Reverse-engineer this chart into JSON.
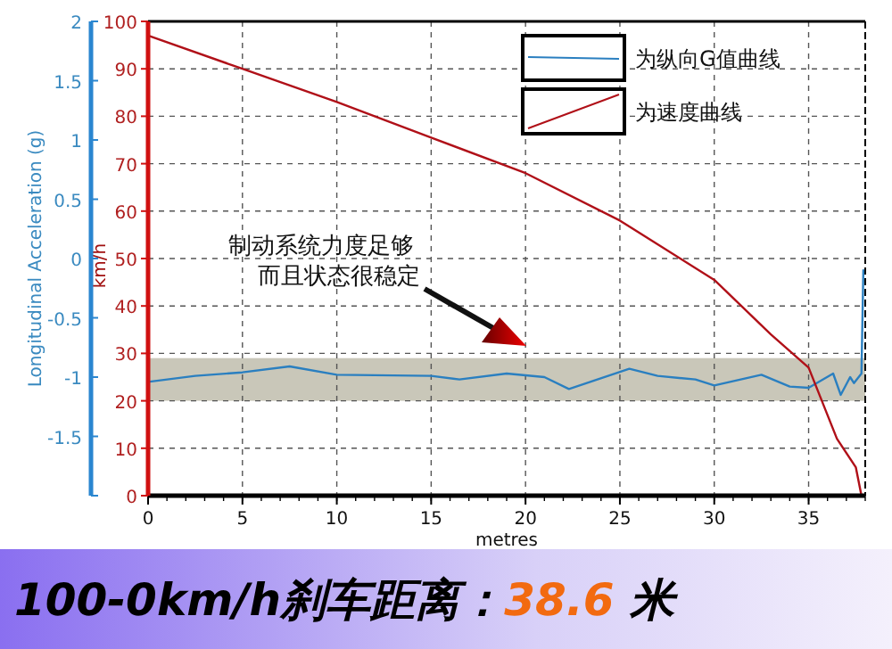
{
  "chart_data": {
    "type": "line",
    "title": "100-0km/h刹车距离：38.6 米",
    "xlabel": "metres",
    "ylabel": "km/h",
    "y2label": "Longitudinal Acceleration (g)",
    "annotations": [
      "制动系统力度足够",
      "而且状态很稳定"
    ],
    "xlim": [
      0,
      38
    ],
    "xticks": [
      0,
      5,
      10,
      15,
      20,
      25,
      30,
      35
    ],
    "ylim": [
      0,
      100
    ],
    "yticks": [
      0,
      10,
      20,
      30,
      40,
      50,
      60,
      70,
      80,
      90,
      100
    ],
    "y2lim": [
      -2,
      2
    ],
    "y2ticks": [
      {
        "value": -2,
        "label": null
      },
      -1.5,
      -1,
      -0.5,
      0,
      0.5,
      1,
      1.5,
      2
    ],
    "grid": true,
    "legend": "top right",
    "line_style": "solid",
    "marker": "none",
    "bands": [
      {
        "axis": "y",
        "from": 20,
        "to": 29,
        "color": "#c9c7b9"
      }
    ],
    "series": [
      {
        "name": "为纵向G值曲线",
        "color": "#2a7fc0",
        "axis": "y2",
        "x": [
          0,
          2.5,
          5,
          7.5,
          10,
          15,
          16.5,
          19,
          21,
          22.3,
          25.5,
          27,
          29,
          30,
          32.5,
          34,
          35,
          36.3,
          36.7,
          37.2,
          37.4,
          37.8,
          37.9
        ],
        "values": [
          -1.04,
          -0.99,
          -0.96,
          -0.91,
          -0.98,
          -0.99,
          -1.02,
          -0.97,
          -1.0,
          -1.1,
          -0.93,
          -0.99,
          -1.02,
          -1.07,
          -0.98,
          -1.08,
          -1.09,
          -0.97,
          -1.15,
          -1.0,
          -1.05,
          -0.97,
          -0.1
        ]
      },
      {
        "name": "为速度曲线",
        "color": "#b01018",
        "x": [
          0,
          5,
          10,
          15,
          20,
          25,
          30,
          33,
          35,
          36.5,
          37.5,
          37.8
        ],
        "values": [
          97,
          90,
          83,
          75.5,
          68,
          58,
          45.5,
          34,
          27,
          12,
          6,
          0
        ]
      }
    ]
  }
}
